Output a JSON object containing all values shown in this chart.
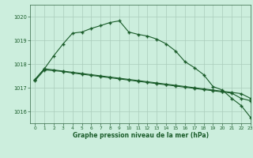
{
  "background_color": "#cceedd",
  "grid_color": "#aaccbb",
  "line_color": "#1a5c2a",
  "xlim": [
    -0.5,
    23
  ],
  "ylim": [
    1015.5,
    1020.5
  ],
  "yticks": [
    1016,
    1017,
    1018,
    1019,
    1020
  ],
  "xticks": [
    0,
    1,
    2,
    3,
    4,
    5,
    6,
    7,
    8,
    9,
    10,
    11,
    12,
    13,
    14,
    15,
    16,
    17,
    18,
    19,
    20,
    21,
    22,
    23
  ],
  "xlabel": "Graphe pression niveau de la mer (hPa)",
  "line1_x": [
    0,
    1,
    2,
    3,
    4,
    5,
    6,
    7,
    8,
    9,
    10,
    11,
    12,
    13,
    14,
    15,
    16,
    17,
    18,
    19,
    20,
    21,
    22,
    23
  ],
  "line1_y": [
    1017.35,
    1017.8,
    1017.75,
    1017.7,
    1017.65,
    1017.6,
    1017.55,
    1017.5,
    1017.45,
    1017.4,
    1017.35,
    1017.3,
    1017.25,
    1017.2,
    1017.15,
    1017.1,
    1017.05,
    1017.0,
    1016.95,
    1016.9,
    1016.85,
    1016.8,
    1016.75,
    1016.55
  ],
  "line2_x": [
    0,
    1,
    2,
    3,
    4,
    5,
    6,
    7,
    8,
    9,
    10,
    11,
    12,
    13,
    14,
    15,
    16,
    17,
    18,
    19,
    20,
    21,
    22,
    23
  ],
  "line2_y": [
    1017.3,
    1017.75,
    1017.72,
    1017.68,
    1017.62,
    1017.57,
    1017.52,
    1017.47,
    1017.42,
    1017.37,
    1017.32,
    1017.27,
    1017.22,
    1017.17,
    1017.12,
    1017.07,
    1017.02,
    1016.97,
    1016.92,
    1016.87,
    1016.82,
    1016.77,
    1016.55,
    1016.45
  ],
  "line3_x": [
    0,
    1,
    2,
    3,
    4,
    5,
    6,
    7,
    8,
    9,
    10,
    11,
    12,
    13,
    14,
    15,
    16,
    17,
    18,
    19,
    20,
    21,
    22,
    23
  ],
  "line3_y": [
    1017.35,
    1017.8,
    1018.35,
    1018.85,
    1019.3,
    1019.35,
    1019.5,
    1019.62,
    1019.75,
    1019.82,
    1019.35,
    1019.25,
    1019.18,
    1019.05,
    1018.85,
    1018.55,
    1018.1,
    1017.85,
    1017.55,
    1017.05,
    1016.9,
    1016.55,
    1016.25,
    1015.75
  ]
}
